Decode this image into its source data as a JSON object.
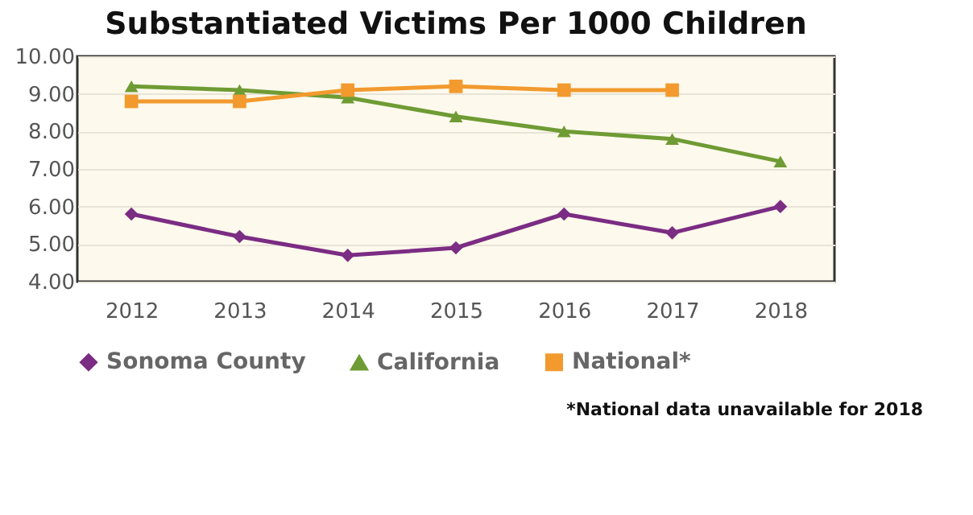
{
  "chart_data": {
    "type": "line",
    "title": "Substantiated Victims Per 1000 Children",
    "categories": [
      "2012",
      "2013",
      "2014",
      "2015",
      "2016",
      "2017",
      "2018"
    ],
    "series": [
      {
        "name": "Sonoma County",
        "color": "#7b2c83",
        "marker": "diamond",
        "values": [
          5.8,
          5.2,
          4.7,
          4.9,
          5.8,
          5.3,
          6.0
        ]
      },
      {
        "name": "California",
        "color": "#6f9b34",
        "marker": "triangle",
        "values": [
          9.2,
          9.1,
          8.9,
          8.4,
          8.0,
          7.8,
          7.2
        ]
      },
      {
        "name": "National*",
        "color": "#f29a2e",
        "marker": "square",
        "values": [
          8.8,
          8.8,
          9.1,
          9.2,
          9.1,
          9.1,
          null
        ]
      }
    ],
    "ylim": [
      4,
      10
    ],
    "yticks": [
      {
        "value": 4,
        "label": "4.00"
      },
      {
        "value": 5,
        "label": "5.00"
      },
      {
        "value": 6,
        "label": "6.00"
      },
      {
        "value": 7,
        "label": "7.00"
      },
      {
        "value": 8,
        "label": "8.00"
      },
      {
        "value": 9,
        "label": "9.00"
      },
      {
        "value": 10,
        "label": "10.00"
      }
    ],
    "grid": "y",
    "legend": "bottom",
    "line_style": "solid",
    "annotations": [
      "*National data unavailable for 2018"
    ]
  }
}
